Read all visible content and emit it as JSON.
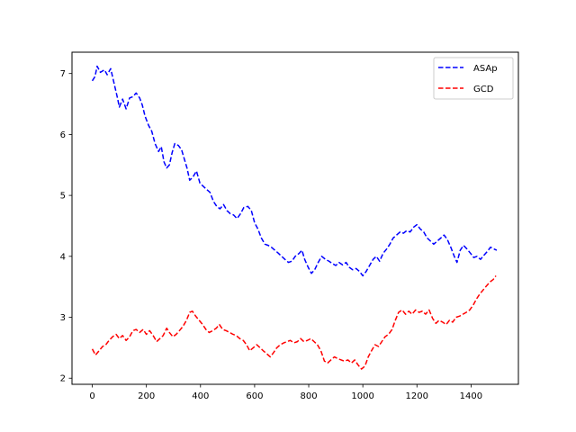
{
  "chart_data": {
    "type": "line",
    "title": "",
    "xlabel": "",
    "ylabel": "",
    "xlim": [
      -75,
      1575
    ],
    "ylim": [
      1.9,
      7.35
    ],
    "x_ticks": [
      0,
      200,
      400,
      600,
      800,
      1000,
      1200,
      1400
    ],
    "y_ticks": [
      2,
      3,
      4,
      5,
      6,
      7
    ],
    "x_tick_labels": [
      "0",
      "200",
      "400",
      "600",
      "800",
      "1000",
      "1200",
      "1400"
    ],
    "y_tick_labels": [
      "2",
      "3",
      "4",
      "5",
      "6",
      "7"
    ],
    "grid": false,
    "legend_position": "top-right",
    "line_style": "dashed",
    "series": [
      {
        "name": "ASAp",
        "color": "#0000ff",
        "points": [
          [
            0,
            6.88
          ],
          [
            10,
            6.95
          ],
          [
            18,
            7.12
          ],
          [
            30,
            7.02
          ],
          [
            45,
            7.06
          ],
          [
            55,
            6.98
          ],
          [
            68,
            7.08
          ],
          [
            80,
            6.85
          ],
          [
            92,
            6.62
          ],
          [
            100,
            6.45
          ],
          [
            112,
            6.58
          ],
          [
            125,
            6.42
          ],
          [
            138,
            6.6
          ],
          [
            150,
            6.62
          ],
          [
            162,
            6.68
          ],
          [
            175,
            6.6
          ],
          [
            185,
            6.48
          ],
          [
            195,
            6.3
          ],
          [
            208,
            6.15
          ],
          [
            220,
            6.05
          ],
          [
            232,
            5.85
          ],
          [
            245,
            5.72
          ],
          [
            255,
            5.8
          ],
          [
            265,
            5.55
          ],
          [
            275,
            5.45
          ],
          [
            285,
            5.5
          ],
          [
            295,
            5.7
          ],
          [
            305,
            5.85
          ],
          [
            318,
            5.82
          ],
          [
            330,
            5.75
          ],
          [
            340,
            5.6
          ],
          [
            350,
            5.45
          ],
          [
            360,
            5.25
          ],
          [
            372,
            5.3
          ],
          [
            385,
            5.4
          ],
          [
            398,
            5.2
          ],
          [
            410,
            5.15
          ],
          [
            422,
            5.1
          ],
          [
            435,
            5.05
          ],
          [
            448,
            4.9
          ],
          [
            460,
            4.82
          ],
          [
            472,
            4.78
          ],
          [
            485,
            4.85
          ],
          [
            498,
            4.75
          ],
          [
            510,
            4.7
          ],
          [
            522,
            4.68
          ],
          [
            535,
            4.62
          ],
          [
            548,
            4.7
          ],
          [
            560,
            4.8
          ],
          [
            575,
            4.82
          ],
          [
            588,
            4.75
          ],
          [
            600,
            4.55
          ],
          [
            612,
            4.45
          ],
          [
            625,
            4.3
          ],
          [
            638,
            4.2
          ],
          [
            650,
            4.18
          ],
          [
            662,
            4.15
          ],
          [
            675,
            4.1
          ],
          [
            688,
            4.05
          ],
          [
            700,
            4.0
          ],
          [
            712,
            3.95
          ],
          [
            725,
            3.9
          ],
          [
            738,
            3.92
          ],
          [
            750,
            4.0
          ],
          [
            765,
            4.05
          ],
          [
            775,
            4.1
          ],
          [
            785,
            3.95
          ],
          [
            798,
            3.82
          ],
          [
            810,
            3.72
          ],
          [
            822,
            3.78
          ],
          [
            835,
            3.9
          ],
          [
            848,
            4.0
          ],
          [
            862,
            3.95
          ],
          [
            875,
            3.92
          ],
          [
            888,
            3.88
          ],
          [
            900,
            3.85
          ],
          [
            912,
            3.9
          ],
          [
            925,
            3.86
          ],
          [
            938,
            3.9
          ],
          [
            950,
            3.82
          ],
          [
            962,
            3.78
          ],
          [
            975,
            3.8
          ],
          [
            988,
            3.75
          ],
          [
            1000,
            3.68
          ],
          [
            1012,
            3.75
          ],
          [
            1025,
            3.85
          ],
          [
            1038,
            3.95
          ],
          [
            1050,
            4.0
          ],
          [
            1062,
            3.92
          ],
          [
            1075,
            4.05
          ],
          [
            1088,
            4.12
          ],
          [
            1100,
            4.2
          ],
          [
            1112,
            4.3
          ],
          [
            1125,
            4.35
          ],
          [
            1138,
            4.4
          ],
          [
            1150,
            4.38
          ],
          [
            1162,
            4.42
          ],
          [
            1175,
            4.4
          ],
          [
            1188,
            4.48
          ],
          [
            1200,
            4.52
          ],
          [
            1212,
            4.45
          ],
          [
            1225,
            4.4
          ],
          [
            1238,
            4.3
          ],
          [
            1250,
            4.25
          ],
          [
            1262,
            4.2
          ],
          [
            1275,
            4.25
          ],
          [
            1288,
            4.3
          ],
          [
            1300,
            4.35
          ],
          [
            1312,
            4.28
          ],
          [
            1325,
            4.15
          ],
          [
            1338,
            4.0
          ],
          [
            1348,
            3.9
          ],
          [
            1360,
            4.1
          ],
          [
            1372,
            4.18
          ],
          [
            1385,
            4.12
          ],
          [
            1398,
            4.05
          ],
          [
            1410,
            3.98
          ],
          [
            1422,
            4.0
          ],
          [
            1435,
            3.95
          ],
          [
            1448,
            4.02
          ],
          [
            1460,
            4.08
          ],
          [
            1472,
            4.15
          ],
          [
            1485,
            4.12
          ],
          [
            1495,
            4.1
          ]
        ]
      },
      {
        "name": "GCD",
        "color": "#ff0000",
        "points": [
          [
            0,
            2.48
          ],
          [
            12,
            2.38
          ],
          [
            25,
            2.45
          ],
          [
            38,
            2.52
          ],
          [
            50,
            2.55
          ],
          [
            62,
            2.62
          ],
          [
            75,
            2.68
          ],
          [
            88,
            2.72
          ],
          [
            100,
            2.65
          ],
          [
            112,
            2.7
          ],
          [
            125,
            2.62
          ],
          [
            138,
            2.68
          ],
          [
            150,
            2.78
          ],
          [
            162,
            2.8
          ],
          [
            175,
            2.75
          ],
          [
            188,
            2.8
          ],
          [
            200,
            2.72
          ],
          [
            212,
            2.78
          ],
          [
            225,
            2.7
          ],
          [
            238,
            2.6
          ],
          [
            250,
            2.65
          ],
          [
            262,
            2.7
          ],
          [
            275,
            2.82
          ],
          [
            285,
            2.75
          ],
          [
            298,
            2.68
          ],
          [
            310,
            2.72
          ],
          [
            322,
            2.78
          ],
          [
            335,
            2.85
          ],
          [
            348,
            2.95
          ],
          [
            360,
            3.08
          ],
          [
            370,
            3.1
          ],
          [
            382,
            3.02
          ],
          [
            395,
            2.95
          ],
          [
            408,
            2.88
          ],
          [
            420,
            2.8
          ],
          [
            432,
            2.75
          ],
          [
            445,
            2.78
          ],
          [
            458,
            2.82
          ],
          [
            470,
            2.88
          ],
          [
            482,
            2.8
          ],
          [
            495,
            2.78
          ],
          [
            508,
            2.75
          ],
          [
            520,
            2.72
          ],
          [
            532,
            2.7
          ],
          [
            545,
            2.65
          ],
          [
            558,
            2.62
          ],
          [
            570,
            2.55
          ],
          [
            582,
            2.45
          ],
          [
            595,
            2.5
          ],
          [
            608,
            2.55
          ],
          [
            620,
            2.5
          ],
          [
            632,
            2.45
          ],
          [
            645,
            2.4
          ],
          [
            658,
            2.35
          ],
          [
            670,
            2.42
          ],
          [
            682,
            2.5
          ],
          [
            695,
            2.55
          ],
          [
            708,
            2.58
          ],
          [
            720,
            2.6
          ],
          [
            732,
            2.62
          ],
          [
            745,
            2.58
          ],
          [
            758,
            2.6
          ],
          [
            770,
            2.65
          ],
          [
            782,
            2.6
          ],
          [
            795,
            2.62
          ],
          [
            808,
            2.65
          ],
          [
            820,
            2.6
          ],
          [
            832,
            2.55
          ],
          [
            845,
            2.45
          ],
          [
            858,
            2.28
          ],
          [
            870,
            2.25
          ],
          [
            882,
            2.3
          ],
          [
            895,
            2.35
          ],
          [
            908,
            2.32
          ],
          [
            920,
            2.3
          ],
          [
            932,
            2.28
          ],
          [
            945,
            2.3
          ],
          [
            958,
            2.25
          ],
          [
            970,
            2.3
          ],
          [
            982,
            2.22
          ],
          [
            995,
            2.15
          ],
          [
            1008,
            2.2
          ],
          [
            1020,
            2.35
          ],
          [
            1032,
            2.45
          ],
          [
            1045,
            2.55
          ],
          [
            1058,
            2.52
          ],
          [
            1070,
            2.6
          ],
          [
            1082,
            2.68
          ],
          [
            1095,
            2.72
          ],
          [
            1108,
            2.8
          ],
          [
            1120,
            2.95
          ],
          [
            1132,
            3.08
          ],
          [
            1145,
            3.12
          ],
          [
            1158,
            3.05
          ],
          [
            1170,
            3.1
          ],
          [
            1182,
            3.05
          ],
          [
            1195,
            3.12
          ],
          [
            1208,
            3.08
          ],
          [
            1220,
            3.1
          ],
          [
            1232,
            3.05
          ],
          [
            1245,
            3.12
          ],
          [
            1258,
            2.98
          ],
          [
            1270,
            2.9
          ],
          [
            1282,
            2.95
          ],
          [
            1295,
            2.92
          ],
          [
            1308,
            2.88
          ],
          [
            1320,
            2.95
          ],
          [
            1332,
            2.92
          ],
          [
            1345,
            3.0
          ],
          [
            1358,
            3.02
          ],
          [
            1370,
            3.05
          ],
          [
            1382,
            3.08
          ],
          [
            1395,
            3.12
          ],
          [
            1408,
            3.2
          ],
          [
            1420,
            3.3
          ],
          [
            1432,
            3.38
          ],
          [
            1445,
            3.45
          ],
          [
            1458,
            3.52
          ],
          [
            1470,
            3.58
          ],
          [
            1482,
            3.62
          ],
          [
            1492,
            3.68
          ]
        ]
      }
    ]
  }
}
